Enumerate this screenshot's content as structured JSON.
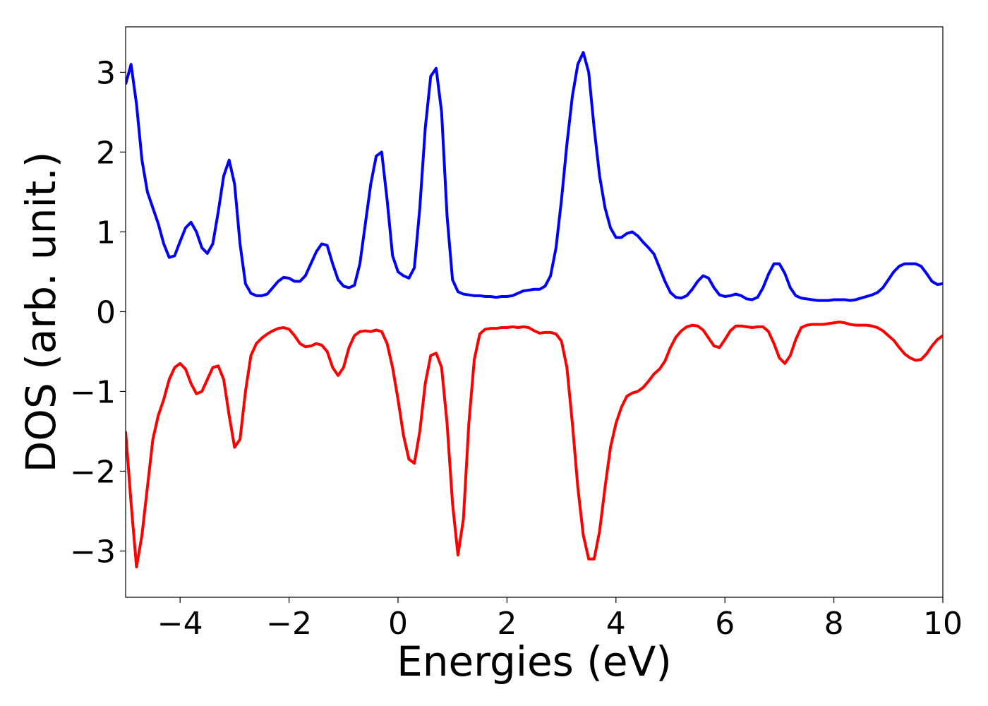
{
  "chart_data": {
    "type": "line",
    "xlabel": "Energies (eV)",
    "ylabel": "DOS (arb. unit.)",
    "x": [
      -5.0,
      -4.9,
      -4.8,
      -4.7,
      -4.6,
      -4.5,
      -4.4,
      -4.3,
      -4.2,
      -4.1,
      -4.0,
      -3.9,
      -3.8,
      -3.7,
      -3.6,
      -3.5,
      -3.4,
      -3.3,
      -3.2,
      -3.1,
      -3.0,
      -2.9,
      -2.8,
      -2.7,
      -2.6,
      -2.5,
      -2.4,
      -2.3,
      -2.2,
      -2.1,
      -2.0,
      -1.9,
      -1.8,
      -1.7,
      -1.6,
      -1.5,
      -1.4,
      -1.3,
      -1.2,
      -1.1,
      -1.0,
      -0.9,
      -0.8,
      -0.7,
      -0.6,
      -0.5,
      -0.4,
      -0.3,
      -0.2,
      -0.1,
      0.0,
      0.1,
      0.2,
      0.3,
      0.4,
      0.5,
      0.6,
      0.7,
      0.8,
      0.9,
      1.0,
      1.1,
      1.2,
      1.3,
      1.4,
      1.5,
      1.6,
      1.7,
      1.8,
      1.9,
      2.0,
      2.1,
      2.2,
      2.3,
      2.4,
      2.5,
      2.6,
      2.7,
      2.8,
      2.9,
      3.0,
      3.1,
      3.2,
      3.3,
      3.4,
      3.5,
      3.6,
      3.7,
      3.8,
      3.9,
      4.0,
      4.1,
      4.2,
      4.3,
      4.4,
      4.5,
      4.6,
      4.7,
      4.8,
      4.9,
      5.0,
      5.1,
      5.2,
      5.3,
      5.4,
      5.5,
      5.6,
      5.7,
      5.8,
      5.9,
      6.0,
      6.1,
      6.2,
      6.3,
      6.4,
      6.5,
      6.6,
      6.7,
      6.8,
      6.9,
      7.0,
      7.1,
      7.2,
      7.3,
      7.4,
      7.5,
      7.6,
      7.7,
      7.8,
      7.9,
      8.0,
      8.1,
      8.2,
      8.3,
      8.4,
      8.5,
      8.6,
      8.7,
      8.8,
      8.9,
      9.0,
      9.1,
      9.2,
      9.3,
      9.4,
      9.5,
      9.6,
      9.7,
      9.8,
      9.9,
      10.0
    ],
    "series": [
      {
        "color": "#0000ff",
        "values": [
          2.85,
          3.1,
          2.6,
          1.9,
          1.5,
          1.3,
          1.1,
          0.85,
          0.68,
          0.7,
          0.88,
          1.05,
          1.12,
          1.0,
          0.8,
          0.73,
          0.85,
          1.25,
          1.7,
          1.9,
          1.6,
          0.85,
          0.35,
          0.23,
          0.2,
          0.2,
          0.22,
          0.3,
          0.38,
          0.43,
          0.42,
          0.38,
          0.38,
          0.45,
          0.6,
          0.75,
          0.85,
          0.83,
          0.6,
          0.4,
          0.32,
          0.3,
          0.33,
          0.6,
          1.1,
          1.6,
          1.95,
          2.0,
          1.4,
          0.7,
          0.5,
          0.45,
          0.42,
          0.55,
          1.3,
          2.3,
          2.95,
          3.05,
          2.5,
          1.2,
          0.4,
          0.25,
          0.22,
          0.21,
          0.2,
          0.2,
          0.19,
          0.19,
          0.18,
          0.19,
          0.19,
          0.2,
          0.23,
          0.26,
          0.27,
          0.28,
          0.28,
          0.32,
          0.45,
          0.8,
          1.4,
          2.1,
          2.7,
          3.1,
          3.25,
          3.0,
          2.3,
          1.7,
          1.3,
          1.05,
          0.93,
          0.93,
          0.98,
          1.0,
          0.95,
          0.87,
          0.8,
          0.72,
          0.55,
          0.38,
          0.24,
          0.18,
          0.17,
          0.2,
          0.28,
          0.38,
          0.45,
          0.42,
          0.3,
          0.21,
          0.19,
          0.2,
          0.22,
          0.2,
          0.16,
          0.15,
          0.18,
          0.3,
          0.47,
          0.6,
          0.6,
          0.48,
          0.3,
          0.2,
          0.17,
          0.16,
          0.15,
          0.14,
          0.14,
          0.14,
          0.15,
          0.15,
          0.15,
          0.14,
          0.15,
          0.17,
          0.19,
          0.21,
          0.24,
          0.3,
          0.4,
          0.5,
          0.57,
          0.6,
          0.6,
          0.6,
          0.57,
          0.48,
          0.38,
          0.34,
          0.35
        ]
      },
      {
        "color": "#ff0000",
        "values": [
          -1.5,
          -2.4,
          -3.2,
          -2.8,
          -2.2,
          -1.6,
          -1.3,
          -1.1,
          -0.85,
          -0.7,
          -0.65,
          -0.72,
          -0.9,
          -1.03,
          -1.0,
          -0.85,
          -0.7,
          -0.68,
          -0.85,
          -1.3,
          -1.7,
          -1.6,
          -1.0,
          -0.55,
          -0.4,
          -0.33,
          -0.28,
          -0.24,
          -0.21,
          -0.2,
          -0.22,
          -0.3,
          -0.4,
          -0.44,
          -0.43,
          -0.4,
          -0.42,
          -0.5,
          -0.7,
          -0.8,
          -0.7,
          -0.45,
          -0.3,
          -0.25,
          -0.24,
          -0.25,
          -0.23,
          -0.25,
          -0.4,
          -0.7,
          -1.1,
          -1.55,
          -1.85,
          -1.9,
          -1.5,
          -0.9,
          -0.55,
          -0.52,
          -0.7,
          -1.4,
          -2.4,
          -3.05,
          -2.6,
          -1.4,
          -0.6,
          -0.28,
          -0.22,
          -0.21,
          -0.21,
          -0.2,
          -0.2,
          -0.19,
          -0.2,
          -0.19,
          -0.2,
          -0.24,
          -0.27,
          -0.26,
          -0.26,
          -0.28,
          -0.37,
          -0.7,
          -1.4,
          -2.2,
          -2.8,
          -3.1,
          -3.1,
          -2.75,
          -2.2,
          -1.7,
          -1.4,
          -1.2,
          -1.06,
          -1.02,
          -1.0,
          -0.95,
          -0.87,
          -0.78,
          -0.72,
          -0.62,
          -0.45,
          -0.32,
          -0.24,
          -0.19,
          -0.17,
          -0.18,
          -0.23,
          -0.33,
          -0.43,
          -0.45,
          -0.35,
          -0.24,
          -0.18,
          -0.18,
          -0.19,
          -0.2,
          -0.19,
          -0.19,
          -0.25,
          -0.4,
          -0.58,
          -0.65,
          -0.55,
          -0.35,
          -0.2,
          -0.17,
          -0.16,
          -0.16,
          -0.16,
          -0.15,
          -0.14,
          -0.13,
          -0.14,
          -0.16,
          -0.17,
          -0.17,
          -0.17,
          -0.18,
          -0.2,
          -0.24,
          -0.3,
          -0.36,
          -0.45,
          -0.53,
          -0.58,
          -0.61,
          -0.6,
          -0.53,
          -0.43,
          -0.35,
          -0.3
        ]
      }
    ],
    "xlim": [
      -5,
      10
    ],
    "xticks": [
      {
        "value": -4,
        "label": "−4"
      },
      {
        "value": -2,
        "label": "−2"
      },
      0,
      2,
      4,
      6,
      8,
      10
    ],
    "ylim": [
      -3.58,
      3.57
    ],
    "yticks": [
      {
        "value": -3,
        "label": "−3"
      },
      {
        "value": -2,
        "label": "−2"
      },
      {
        "value": -1,
        "label": "−1"
      },
      0,
      1,
      2,
      3
    ]
  }
}
